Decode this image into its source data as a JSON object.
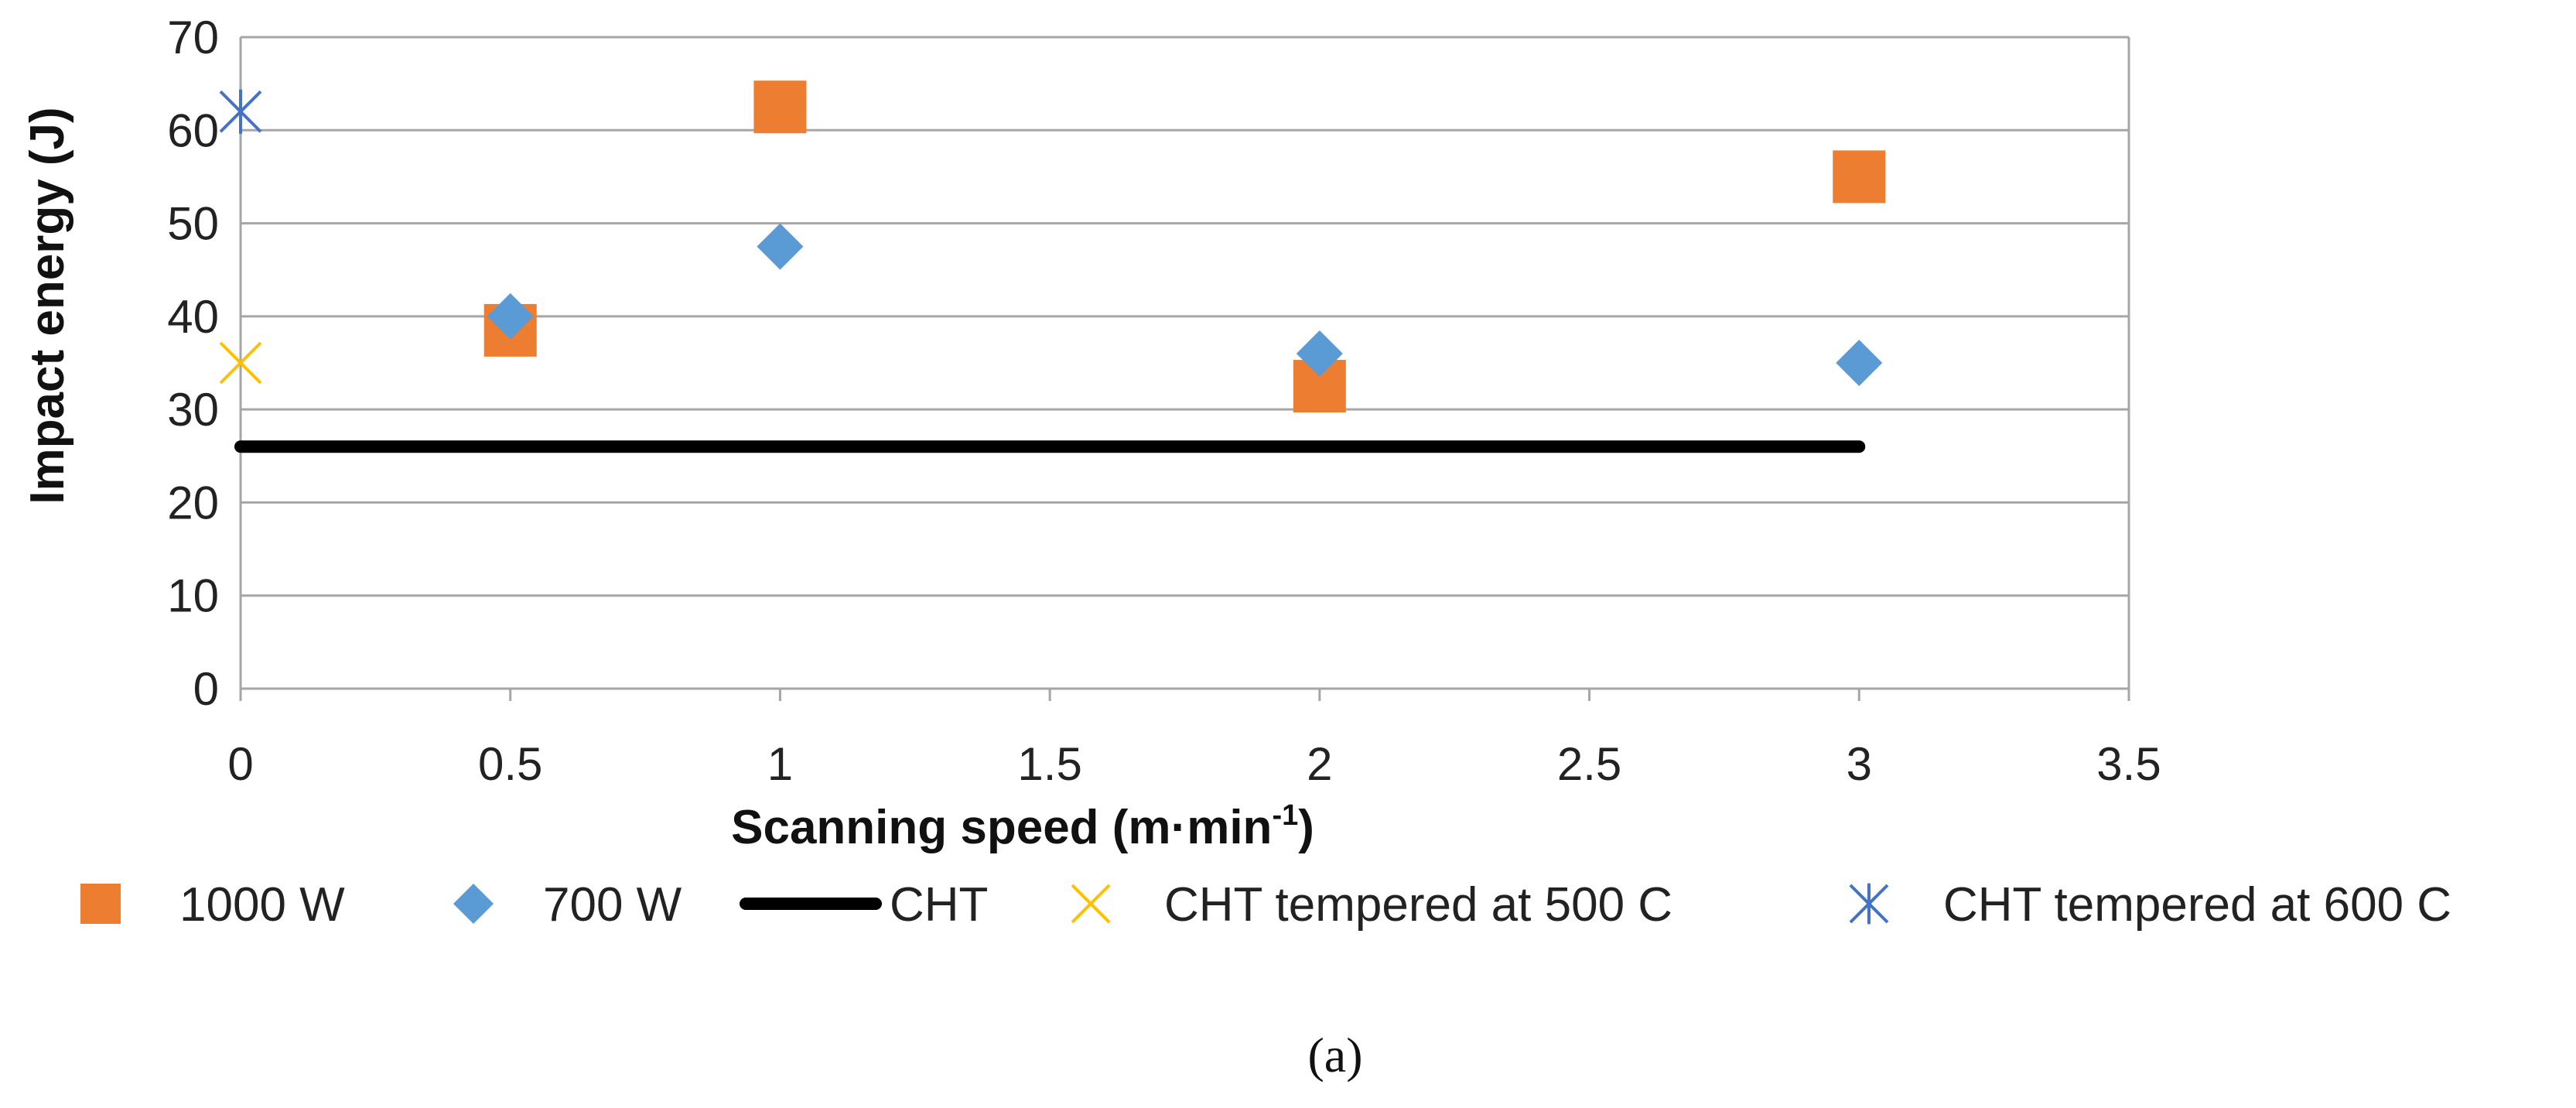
{
  "chart_data": {
    "type": "scatter",
    "title": "",
    "xlabel": "Scanning speed (m·min",
    "xlabel_sup": "-1",
    "xlabel_end": ")",
    "ylabel": "Impact energy (J)",
    "xlim": [
      0,
      3.5
    ],
    "ylim": [
      0,
      70
    ],
    "x_ticks": [
      "0",
      "0.5",
      "1",
      "1.5",
      "2",
      "2.5",
      "3",
      "3.5"
    ],
    "y_ticks": [
      "0",
      "10",
      "20",
      "30",
      "40",
      "50",
      "60",
      "70"
    ],
    "grid": true,
    "legend_position": "bottom",
    "series": [
      {
        "name": "1000 W",
        "marker": "square",
        "color": "#ED7D31",
        "points": [
          [
            0.5,
            38.5
          ],
          [
            1,
            62.5
          ],
          [
            2,
            32.5
          ],
          [
            3,
            55
          ]
        ]
      },
      {
        "name": "700 W",
        "marker": "diamond",
        "color": "#5B9BD5",
        "points": [
          [
            0.5,
            40
          ],
          [
            1,
            47.5
          ],
          [
            2,
            36
          ],
          [
            3,
            35
          ]
        ]
      },
      {
        "name": "CHT",
        "marker": "line",
        "color": "#000000",
        "points": [
          [
            0,
            26
          ],
          [
            3,
            26
          ]
        ]
      },
      {
        "name": "CHT tempered at 500 C",
        "marker": "x",
        "color": "#FFC000",
        "points": [
          [
            0,
            35
          ]
        ]
      },
      {
        "name": "CHT tempered at 600 C",
        "marker": "star",
        "color": "#4472C4",
        "points": [
          [
            0,
            62
          ]
        ]
      }
    ],
    "caption": "(a)"
  }
}
